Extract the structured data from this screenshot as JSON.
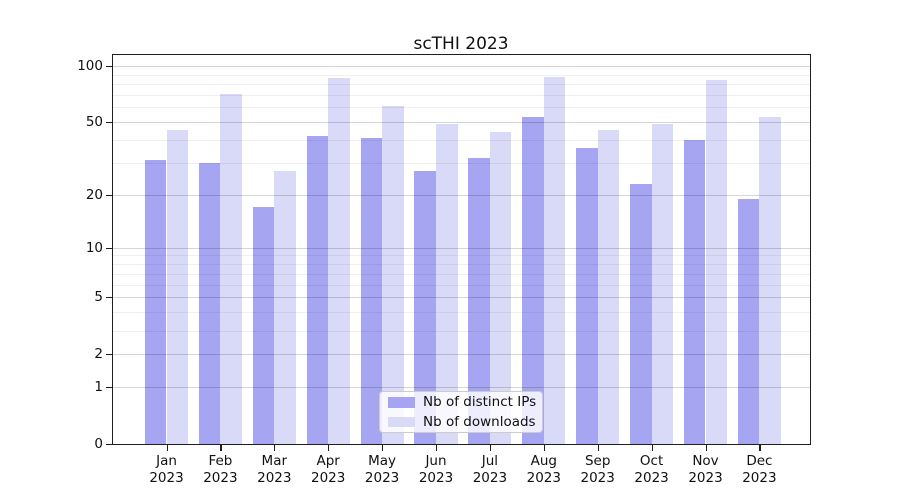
{
  "title": "scTHI 2023",
  "chart_data": {
    "type": "bar",
    "title": "scTHI 2023",
    "categories": [
      "Jan 2023",
      "Feb 2023",
      "Mar 2023",
      "Apr 2023",
      "May 2023",
      "Jun 2023",
      "Jul 2023",
      "Aug 2023",
      "Sep 2023",
      "Oct 2023",
      "Nov 2023",
      "Dec 2023"
    ],
    "series": [
      {
        "name": "Nb of distinct IPs",
        "color": "#a5a5f2",
        "values": [
          31,
          30,
          17,
          42,
          41,
          27,
          32,
          53,
          36,
          23,
          40,
          19
        ]
      },
      {
        "name": "Nb of downloads",
        "color": "#d9d9f8",
        "values": [
          45,
          71,
          27,
          86,
          61,
          49,
          44,
          87,
          45,
          49,
          84,
          53
        ]
      }
    ],
    "yscale": "log1p",
    "ylim": [
      0,
      114
    ],
    "y_ticks": [
      0,
      1,
      2,
      5,
      10,
      20,
      50,
      100
    ],
    "y_minor_gridlines": [
      3,
      4,
      6,
      7,
      8,
      9,
      30,
      40,
      60,
      70,
      80,
      90
    ],
    "grid": true,
    "legend_position": "lower center"
  },
  "colors": {
    "bar_ips": "#a5a5f2",
    "bar_downloads": "#d9d9f8",
    "grid_major": "rgba(0,0,0,0.16)",
    "grid_minor": "rgba(0,0,0,0.06)",
    "spine": "#1f1f1f",
    "text": "#111111",
    "legend_border": "#cccccc",
    "legend_bg": "rgba(255,255,255,0.8)"
  }
}
